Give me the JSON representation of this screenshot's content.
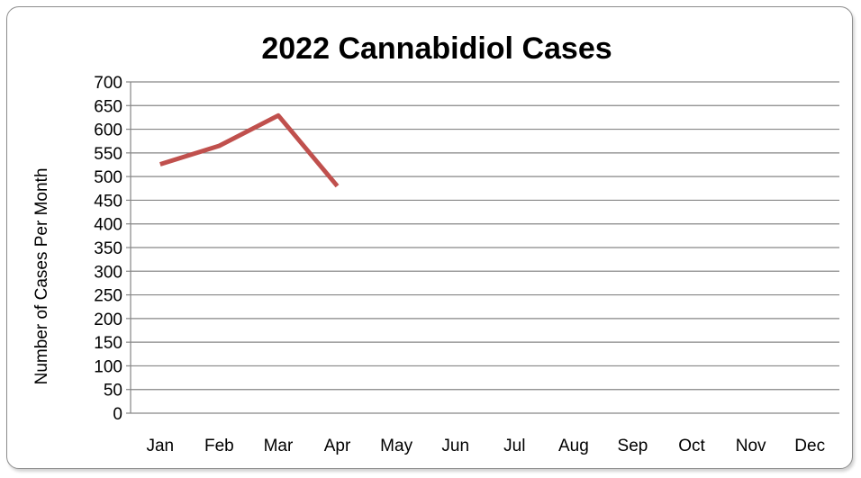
{
  "chart_data": {
    "type": "line",
    "title": "2022 Cannabidiol Cases",
    "xlabel": "",
    "ylabel": "Number of Cases Per Month",
    "categories": [
      "Jan",
      "Feb",
      "Mar",
      "Apr",
      "May",
      "Jun",
      "Jul",
      "Aug",
      "Sep",
      "Oct",
      "Nov",
      "Dec"
    ],
    "series": [
      {
        "values": [
          526,
          565,
          629,
          480,
          null,
          null,
          null,
          null,
          null,
          null,
          null,
          null
        ]
      }
    ],
    "ylim": [
      0,
      700
    ],
    "ytick_step": 50,
    "grid": true,
    "legend": "none",
    "line_color": "#c0504d"
  }
}
